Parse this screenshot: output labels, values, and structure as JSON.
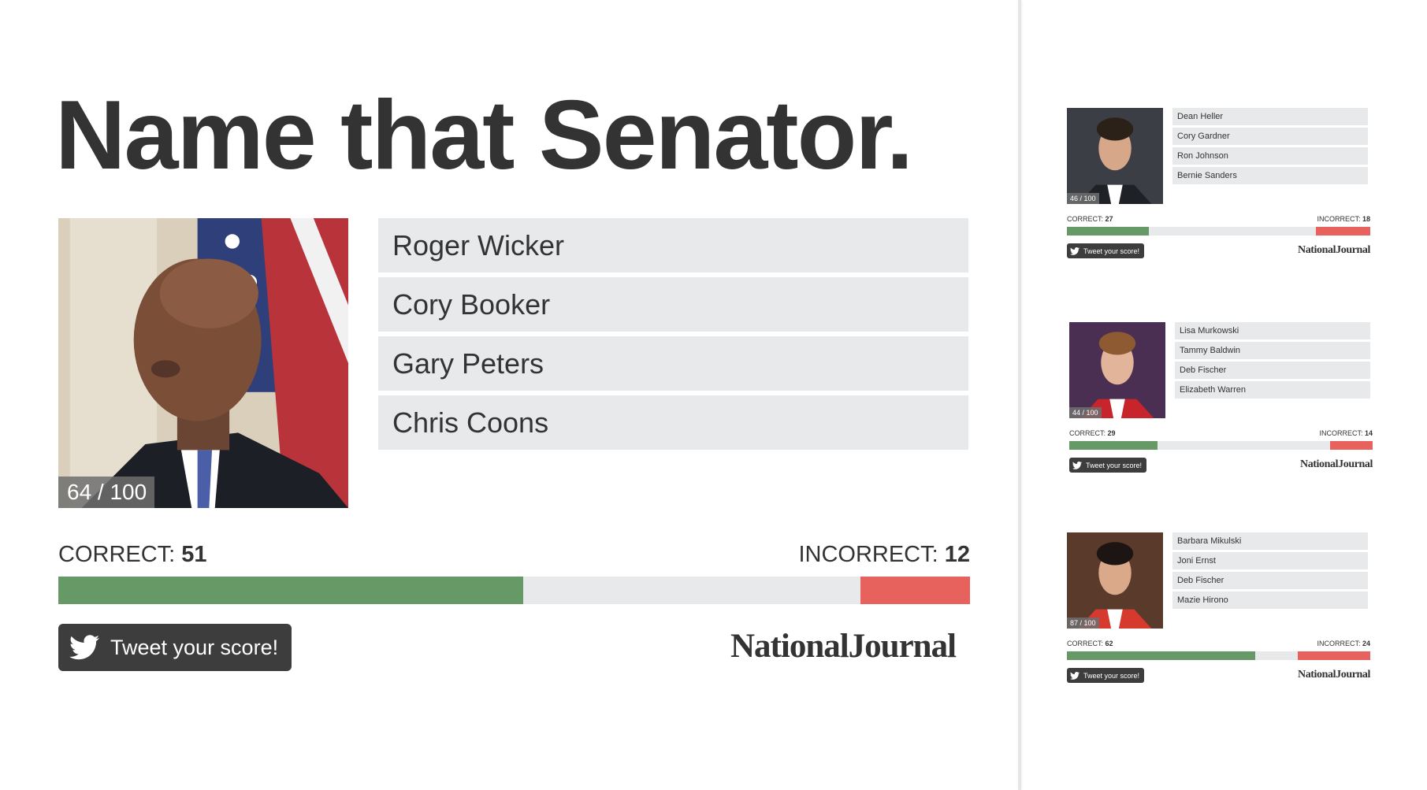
{
  "main": {
    "title": "Name that Senator.",
    "score_badge": "64 / 100",
    "options": [
      "Roger Wicker",
      "Cory Booker",
      "Gary Peters",
      "Chris Coons"
    ],
    "correct_label": "CORRECT:",
    "correct_value": "51",
    "incorrect_label": "INCORRECT:",
    "incorrect_value": "12",
    "correct_fraction": 0.51,
    "incorrect_fraction": 0.12,
    "tweet_label": "Tweet your score!",
    "logo": "NationalJournal"
  },
  "cards": [
    {
      "score_badge": "46 / 100",
      "options": [
        "Dean Heller",
        "Cory Gardner",
        "Ron Johnson",
        "Bernie Sanders"
      ],
      "correct_label": "CORRECT:",
      "correct_value": "27",
      "incorrect_label": "INCORRECT:",
      "incorrect_value": "18",
      "correct_fraction": 0.27,
      "incorrect_fraction": 0.18,
      "tweet_label": "Tweet your score!",
      "logo": "NationalJournal"
    },
    {
      "score_badge": "44 / 100",
      "options": [
        "Lisa Murkowski",
        "Tammy Baldwin",
        "Deb Fischer",
        "Elizabeth Warren"
      ],
      "correct_label": "CORRECT:",
      "correct_value": "29",
      "incorrect_label": "INCORRECT:",
      "incorrect_value": "14",
      "correct_fraction": 0.29,
      "incorrect_fraction": 0.14,
      "tweet_label": "Tweet your score!",
      "logo": "NationalJournal"
    },
    {
      "score_badge": "87 / 100",
      "options": [
        "Barbara Mikulski",
        "Joni Ernst",
        "Deb Fischer",
        "Mazie Hirono"
      ],
      "correct_label": "CORRECT:",
      "correct_value": "62",
      "incorrect_label": "INCORRECT:",
      "incorrect_value": "24",
      "correct_fraction": 0.62,
      "incorrect_fraction": 0.24,
      "tweet_label": "Tweet your score!",
      "logo": "NationalJournal"
    }
  ],
  "colors": {
    "correct_bar": "#679966",
    "incorrect_bar": "#e8625d",
    "bar_track": "#e8e9ea",
    "tweet_button": "#3d3d3d"
  }
}
